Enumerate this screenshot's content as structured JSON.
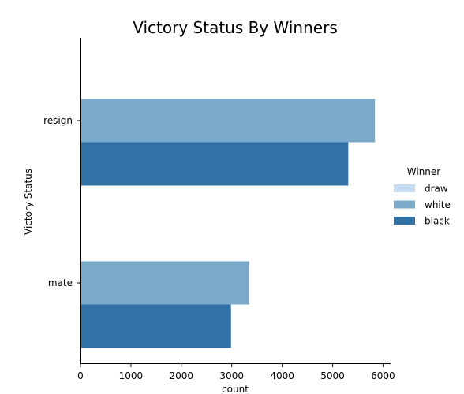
{
  "chart_data": {
    "type": "bar",
    "orientation": "horizontal",
    "title": "Victory Status By Winners",
    "xlabel": "count",
    "ylabel": "Victory Status",
    "categories": [
      "resign",
      "mate"
    ],
    "xlim": [
      0,
      6150
    ],
    "xticks": [
      "0",
      "1000",
      "2000",
      "3000",
      "4000",
      "5000",
      "6000"
    ],
    "legend_title": "Winner",
    "legend_position": "right",
    "series": [
      {
        "name": "draw",
        "color": "#c6dbef",
        "values": [
          0,
          0
        ]
      },
      {
        "name": "white",
        "color": "#7aaac9",
        "values": [
          5840,
          3350
        ]
      },
      {
        "name": "black",
        "color": "#3271a5",
        "values": [
          5310,
          2985
        ]
      }
    ],
    "grid": false
  }
}
